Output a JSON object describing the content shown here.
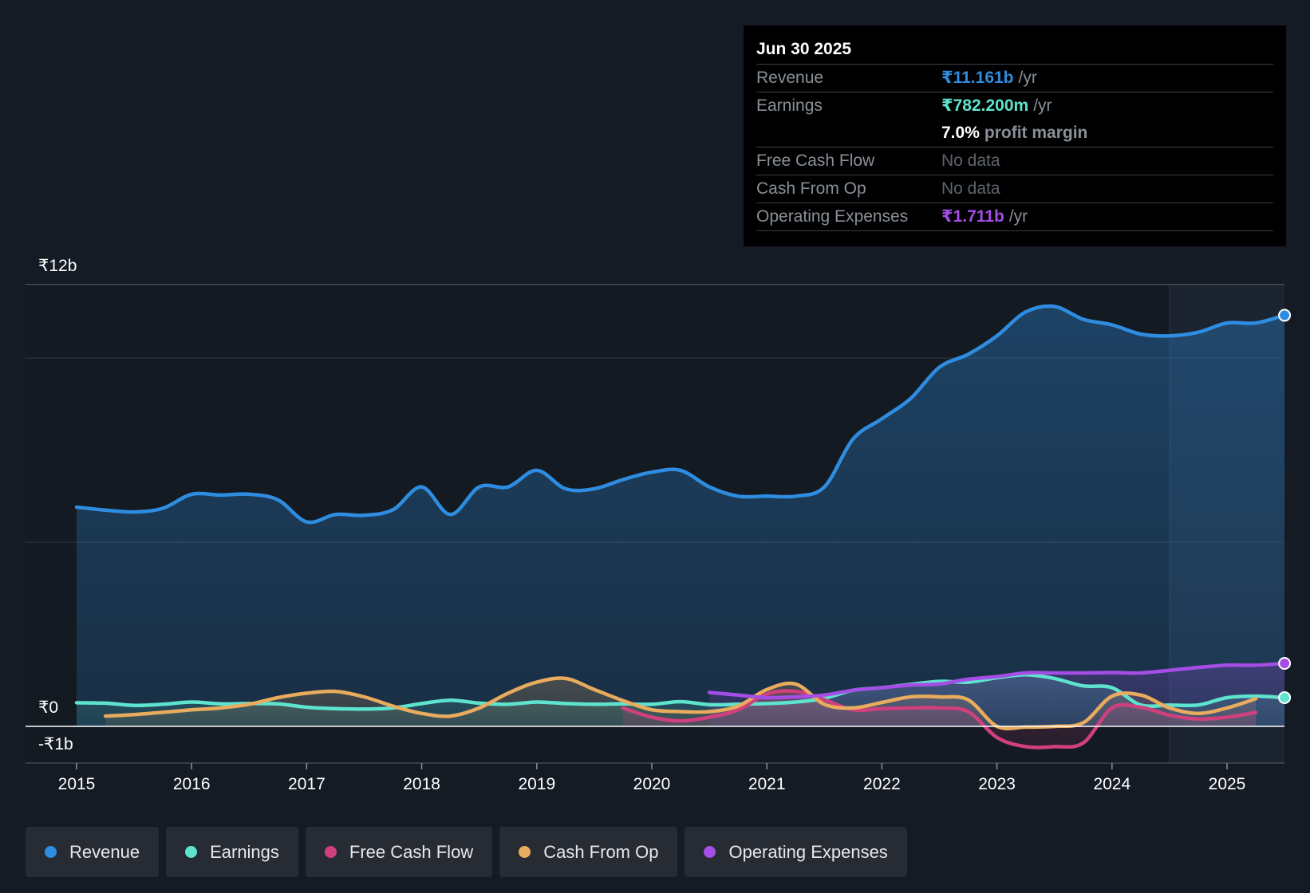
{
  "chart_data": {
    "type": "area",
    "title": "",
    "y_labels": [
      "₹12b",
      "₹0",
      "-₹1b"
    ],
    "ylim": [
      -1,
      12
    ],
    "xlim": [
      2015,
      2025.5
    ],
    "x_ticks": [
      "2015",
      "2016",
      "2017",
      "2018",
      "2019",
      "2020",
      "2021",
      "2022",
      "2023",
      "2024",
      "2025"
    ],
    "series": [
      {
        "name": "Revenue",
        "color": "#2e8de0",
        "x": [
          2015.0,
          2015.25,
          2015.5,
          2015.75,
          2016.0,
          2016.25,
          2016.5,
          2016.75,
          2017.0,
          2017.25,
          2017.5,
          2017.75,
          2018.0,
          2018.25,
          2018.5,
          2018.75,
          2019.0,
          2019.25,
          2019.5,
          2019.75,
          2020.0,
          2020.25,
          2020.5,
          2020.75,
          2021.0,
          2021.25,
          2021.5,
          2021.75,
          2022.0,
          2022.25,
          2022.5,
          2022.75,
          2023.0,
          2023.25,
          2023.5,
          2023.75,
          2024.0,
          2024.25,
          2024.5,
          2024.75,
          2025.0,
          2025.25,
          2025.5
        ],
        "values": [
          5.95,
          5.87,
          5.82,
          5.92,
          6.3,
          6.28,
          6.3,
          6.15,
          5.55,
          5.75,
          5.73,
          5.88,
          6.5,
          5.75,
          6.5,
          6.5,
          6.95,
          6.45,
          6.45,
          6.7,
          6.9,
          6.95,
          6.5,
          6.25,
          6.25,
          6.25,
          6.5,
          7.8,
          8.35,
          8.9,
          9.75,
          10.1,
          10.6,
          11.25,
          11.4,
          11.05,
          10.9,
          10.65,
          10.6,
          10.7,
          10.95,
          10.95,
          11.16
        ]
      },
      {
        "name": "Earnings",
        "color": "#5ee3cf",
        "x": [
          2015.0,
          2015.25,
          2015.5,
          2015.75,
          2016.0,
          2016.25,
          2016.5,
          2016.75,
          2017.0,
          2017.25,
          2017.5,
          2017.75,
          2018.0,
          2018.25,
          2018.5,
          2018.75,
          2019.0,
          2019.25,
          2019.5,
          2019.75,
          2020.0,
          2020.25,
          2020.5,
          2020.75,
          2021.0,
          2021.25,
          2021.5,
          2021.75,
          2022.0,
          2022.25,
          2022.5,
          2022.75,
          2023.0,
          2023.25,
          2023.5,
          2023.75,
          2024.0,
          2024.25,
          2024.5,
          2024.75,
          2025.0,
          2025.25,
          2025.5
        ],
        "values": [
          0.64,
          0.63,
          0.57,
          0.6,
          0.66,
          0.61,
          0.62,
          0.61,
          0.52,
          0.48,
          0.47,
          0.5,
          0.62,
          0.71,
          0.63,
          0.6,
          0.66,
          0.62,
          0.6,
          0.61,
          0.6,
          0.67,
          0.59,
          0.6,
          0.62,
          0.66,
          0.76,
          0.98,
          1.05,
          1.14,
          1.22,
          1.2,
          1.32,
          1.4,
          1.3,
          1.1,
          1.05,
          0.58,
          0.58,
          0.58,
          0.78,
          0.82,
          0.78
        ]
      },
      {
        "name": "Free Cash Flow",
        "color": "#d0407e",
        "x": [
          2019.75,
          2020.0,
          2020.25,
          2020.5,
          2020.75,
          2021.0,
          2021.25,
          2021.5,
          2021.75,
          2022.0,
          2022.25,
          2022.5,
          2022.75,
          2023.0,
          2023.25,
          2023.5,
          2023.75,
          2024.0,
          2024.25,
          2024.5,
          2024.75,
          2025.0,
          2025.25
        ],
        "values": [
          0.5,
          0.25,
          0.15,
          0.25,
          0.45,
          0.88,
          0.95,
          0.72,
          0.45,
          0.48,
          0.5,
          0.5,
          0.4,
          -0.3,
          -0.55,
          -0.55,
          -0.45,
          0.5,
          0.52,
          0.3,
          0.2,
          0.25,
          0.38
        ]
      },
      {
        "name": "Cash From Op",
        "color": "#e9ab5d",
        "x": [
          2015.25,
          2015.5,
          2015.75,
          2016.0,
          2016.25,
          2016.5,
          2016.75,
          2017.0,
          2017.25,
          2017.5,
          2017.75,
          2018.0,
          2018.25,
          2018.5,
          2018.75,
          2019.0,
          2019.25,
          2019.5,
          2019.75,
          2020.0,
          2020.25,
          2020.5,
          2020.75,
          2021.0,
          2021.25,
          2021.5,
          2021.75,
          2022.0,
          2022.25,
          2022.5,
          2022.75,
          2023.0,
          2023.25,
          2023.5,
          2023.75,
          2024.0,
          2024.25,
          2024.5,
          2024.75,
          2025.0,
          2025.25
        ],
        "values": [
          0.28,
          0.32,
          0.38,
          0.45,
          0.5,
          0.6,
          0.78,
          0.9,
          0.95,
          0.8,
          0.55,
          0.35,
          0.28,
          0.5,
          0.9,
          1.2,
          1.3,
          1.0,
          0.7,
          0.45,
          0.4,
          0.4,
          0.55,
          1.0,
          1.15,
          0.6,
          0.5,
          0.65,
          0.8,
          0.8,
          0.72,
          0.0,
          -0.02,
          0.0,
          0.1,
          0.82,
          0.85,
          0.5,
          0.35,
          0.5,
          0.75
        ]
      },
      {
        "name": "Operating Expenses",
        "color": "#a44ee6",
        "x": [
          2020.5,
          2020.75,
          2021.0,
          2021.25,
          2021.5,
          2021.75,
          2022.0,
          2022.25,
          2022.5,
          2022.75,
          2023.0,
          2023.25,
          2023.5,
          2023.75,
          2024.0,
          2024.25,
          2024.5,
          2024.75,
          2025.0,
          2025.25,
          2025.5
        ],
        "values": [
          0.92,
          0.85,
          0.78,
          0.8,
          0.85,
          0.98,
          1.05,
          1.12,
          1.15,
          1.28,
          1.35,
          1.45,
          1.45,
          1.45,
          1.46,
          1.45,
          1.52,
          1.6,
          1.66,
          1.66,
          1.71
        ]
      }
    ],
    "forecast_shade_start": 2024.5
  },
  "tooltip": {
    "date": "Jun 30 2025",
    "rows": {
      "revenue": {
        "label": "Revenue",
        "value": "₹11.161b",
        "unit": "/yr"
      },
      "earnings": {
        "label": "Earnings",
        "value": "₹782.200m",
        "unit": "/yr"
      },
      "margin": {
        "value": "7.0%",
        "text": "profit margin"
      },
      "fcf": {
        "label": "Free Cash Flow",
        "value": "No data"
      },
      "cfo": {
        "label": "Cash From Op",
        "value": "No data"
      },
      "opex": {
        "label": "Operating Expenses",
        "value": "₹1.711b",
        "unit": "/yr"
      }
    }
  },
  "legend": [
    {
      "label": "Revenue",
      "color": "#2e8de0"
    },
    {
      "label": "Earnings",
      "color": "#5ee3cf"
    },
    {
      "label": "Free Cash Flow",
      "color": "#d0407e"
    },
    {
      "label": "Cash From Op",
      "color": "#e9ab5d"
    },
    {
      "label": "Operating Expenses",
      "color": "#a44ee6"
    }
  ]
}
